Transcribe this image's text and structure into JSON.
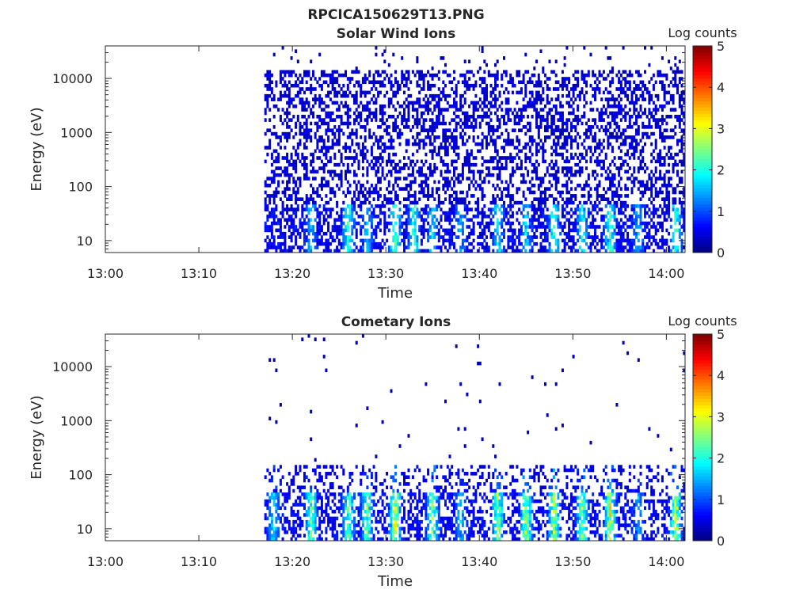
{
  "figure": {
    "title": "RPCICA150629T13.PNG"
  },
  "chart_data": [
    {
      "type": "heatmap",
      "title": "Solar Wind Ions",
      "xlabel": "Time",
      "ylabel": "Energy (eV)",
      "x_ticks": [
        "13:00",
        "13:10",
        "13:20",
        "13:30",
        "13:40",
        "13:50",
        "14:00"
      ],
      "x_range": [
        "13:00",
        "14:02"
      ],
      "y_scale": "log",
      "y_ticks": [
        "10",
        "100",
        "1000",
        "10000"
      ],
      "y_range": [
        6,
        40000
      ],
      "data_start": "13:17",
      "colorbar": {
        "label": "Log counts",
        "ticks": [
          "0",
          "1",
          "2",
          "3",
          "4",
          "5"
        ],
        "range": [
          0,
          5
        ],
        "colormap": "jet"
      },
      "high_energy_background_level": 0.3,
      "low_energy_bursts": [
        {
          "time": "13:22",
          "level": 1.2
        },
        {
          "time": "13:26",
          "level": 2.0
        },
        {
          "time": "13:28",
          "level": 1.2
        },
        {
          "time": "13:31",
          "level": 2.2
        },
        {
          "time": "13:33",
          "level": 2.0
        },
        {
          "time": "13:35",
          "level": 1.3
        },
        {
          "time": "13:38",
          "level": 1.0
        },
        {
          "time": "13:42",
          "level": 1.5
        },
        {
          "time": "13:45",
          "level": 1.3
        },
        {
          "time": "13:48",
          "level": 1.9
        },
        {
          "time": "13:51",
          "level": 1.7
        },
        {
          "time": "13:54",
          "level": 1.9
        },
        {
          "time": "13:57",
          "level": 1.2
        },
        {
          "time": "14:01",
          "level": 2.0
        }
      ]
    },
    {
      "type": "heatmap",
      "title": "Cometary Ions",
      "xlabel": "Time",
      "ylabel": "Energy (eV)",
      "x_ticks": [
        "13:00",
        "13:10",
        "13:20",
        "13:30",
        "13:40",
        "13:50",
        "14:00"
      ],
      "x_range": [
        "13:00",
        "14:02"
      ],
      "y_scale": "log",
      "y_ticks": [
        "10",
        "100",
        "1000",
        "10000"
      ],
      "y_range": [
        6,
        40000
      ],
      "data_start": "13:17",
      "colorbar": {
        "label": "Log counts",
        "ticks": [
          "0",
          "1",
          "2",
          "3",
          "4",
          "5"
        ],
        "range": [
          0,
          5
        ],
        "colormap": "jet"
      },
      "low_energy_bursts": [
        {
          "time": "13:18",
          "level": 1.5
        },
        {
          "time": "13:22",
          "level": 2.3
        },
        {
          "time": "13:26",
          "level": 2.2
        },
        {
          "time": "13:28",
          "level": 2.3
        },
        {
          "time": "13:31",
          "level": 3.0
        },
        {
          "time": "13:35",
          "level": 2.5
        },
        {
          "time": "13:38",
          "level": 1.2
        },
        {
          "time": "13:42",
          "level": 2.6
        },
        {
          "time": "13:45",
          "level": 2.9
        },
        {
          "time": "13:48",
          "level": 2.7
        },
        {
          "time": "13:51",
          "level": 2.6
        },
        {
          "time": "13:54",
          "level": 3.0
        },
        {
          "time": "13:57",
          "level": 1.0
        },
        {
          "time": "14:01",
          "level": 2.9
        }
      ]
    }
  ]
}
